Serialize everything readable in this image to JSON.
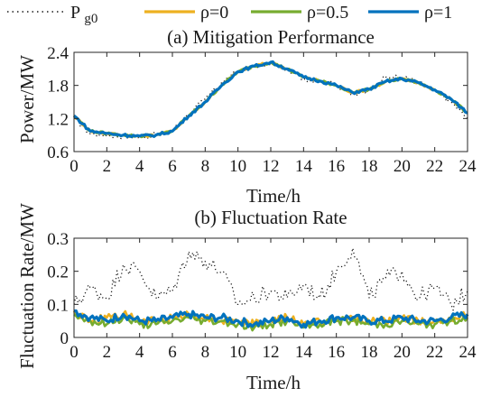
{
  "colors": {
    "pg0": "#1a1a1a",
    "rho0": "#edb120",
    "rho05": "#77ac30",
    "rho1": "#0072bd"
  },
  "legend": [
    {
      "key": "pg0",
      "main": "P",
      "sub": "g0"
    },
    {
      "key": "rho0",
      "label": "ρ=0"
    },
    {
      "key": "rho05",
      "label": "ρ=0.5"
    },
    {
      "key": "rho1",
      "label": "ρ=1"
    }
  ],
  "chart_data": [
    {
      "type": "line",
      "title": "(a) Mitigation Performance",
      "xlabel": "Time/h",
      "ylabel": "Power/MW",
      "xlim": [
        0,
        24
      ],
      "ylim": [
        0.6,
        2.4
      ],
      "xticks": [
        "0",
        "2",
        "4",
        "6",
        "8",
        "10",
        "12",
        "14",
        "16",
        "18",
        "20",
        "22",
        "24"
      ],
      "yticks": [
        "0.6",
        "1.2",
        "1.8",
        "2.4"
      ],
      "x": [
        0,
        1,
        2,
        3,
        4,
        5,
        6,
        7,
        8,
        9,
        10,
        11,
        12,
        13,
        14,
        15,
        16,
        17,
        18,
        19,
        20,
        21,
        22,
        23,
        24
      ],
      "series": [
        {
          "key": "pg0",
          "name": "P g0",
          "values": [
            1.22,
            0.92,
            0.9,
            0.88,
            0.86,
            0.9,
            0.98,
            1.28,
            1.55,
            1.85,
            2.05,
            2.15,
            2.2,
            2.1,
            1.92,
            1.88,
            1.82,
            1.62,
            1.72,
            1.95,
            1.95,
            1.85,
            1.7,
            1.5,
            1.2
          ]
        },
        {
          "key": "rho0",
          "name": "ρ=0",
          "values": [
            1.25,
            0.97,
            0.93,
            0.9,
            0.88,
            0.9,
            0.97,
            1.25,
            1.5,
            1.8,
            2.05,
            2.15,
            2.22,
            2.1,
            1.95,
            1.88,
            1.8,
            1.67,
            1.73,
            1.87,
            1.92,
            1.85,
            1.72,
            1.55,
            1.3
          ]
        },
        {
          "key": "rho05",
          "name": "ρ=0.5",
          "values": [
            1.25,
            0.97,
            0.93,
            0.9,
            0.88,
            0.9,
            0.97,
            1.25,
            1.5,
            1.8,
            2.05,
            2.15,
            2.22,
            2.1,
            1.95,
            1.88,
            1.8,
            1.67,
            1.73,
            1.87,
            1.92,
            1.85,
            1.72,
            1.55,
            1.3
          ]
        },
        {
          "key": "rho1",
          "name": "ρ=1",
          "values": [
            1.25,
            0.97,
            0.93,
            0.9,
            0.88,
            0.9,
            0.97,
            1.25,
            1.5,
            1.8,
            2.05,
            2.15,
            2.22,
            2.1,
            1.95,
            1.88,
            1.8,
            1.67,
            1.73,
            1.87,
            1.92,
            1.85,
            1.72,
            1.55,
            1.3
          ]
        }
      ]
    },
    {
      "type": "line",
      "title": "(b) Fluctuation Rate",
      "xlabel": "Time/h",
      "ylabel": "Fluctuation Rate/MW",
      "xlim": [
        0,
        24
      ],
      "ylim": [
        0,
        0.3
      ],
      "xticks": [
        "0",
        "2",
        "4",
        "6",
        "8",
        "10",
        "12",
        "14",
        "16",
        "18",
        "20",
        "22",
        "24"
      ],
      "yticks": [
        "0",
        "0.1",
        "0.2",
        "0.3"
      ],
      "x": [
        0,
        1,
        2,
        3,
        4,
        5,
        6,
        7,
        8,
        9,
        10,
        11,
        12,
        13,
        14,
        15,
        16,
        17,
        18,
        19,
        20,
        21,
        22,
        23,
        24
      ],
      "series": [
        {
          "key": "pg0",
          "name": "P g0",
          "values": [
            0.1,
            0.15,
            0.12,
            0.22,
            0.2,
            0.12,
            0.14,
            0.26,
            0.23,
            0.2,
            0.1,
            0.12,
            0.14,
            0.12,
            0.16,
            0.12,
            0.2,
            0.27,
            0.12,
            0.18,
            0.2,
            0.12,
            0.15,
            0.1,
            0.14
          ]
        },
        {
          "key": "rho0",
          "name": "ρ=0",
          "values": [
            0.08,
            0.05,
            0.06,
            0.07,
            0.05,
            0.05,
            0.06,
            0.07,
            0.06,
            0.05,
            0.05,
            0.04,
            0.05,
            0.06,
            0.04,
            0.05,
            0.05,
            0.06,
            0.05,
            0.05,
            0.06,
            0.05,
            0.05,
            0.06,
            0.07
          ]
        },
        {
          "key": "rho05",
          "name": "ρ=0.5",
          "values": [
            0.07,
            0.05,
            0.04,
            0.06,
            0.04,
            0.04,
            0.05,
            0.06,
            0.05,
            0.05,
            0.04,
            0.03,
            0.04,
            0.05,
            0.03,
            0.04,
            0.05,
            0.05,
            0.04,
            0.04,
            0.05,
            0.04,
            0.04,
            0.05,
            0.06
          ]
        },
        {
          "key": "rho1",
          "name": "ρ=1",
          "values": [
            0.08,
            0.06,
            0.05,
            0.07,
            0.05,
            0.05,
            0.06,
            0.07,
            0.06,
            0.06,
            0.05,
            0.04,
            0.05,
            0.06,
            0.04,
            0.05,
            0.06,
            0.06,
            0.05,
            0.05,
            0.06,
            0.05,
            0.05,
            0.06,
            0.07
          ]
        }
      ]
    }
  ]
}
